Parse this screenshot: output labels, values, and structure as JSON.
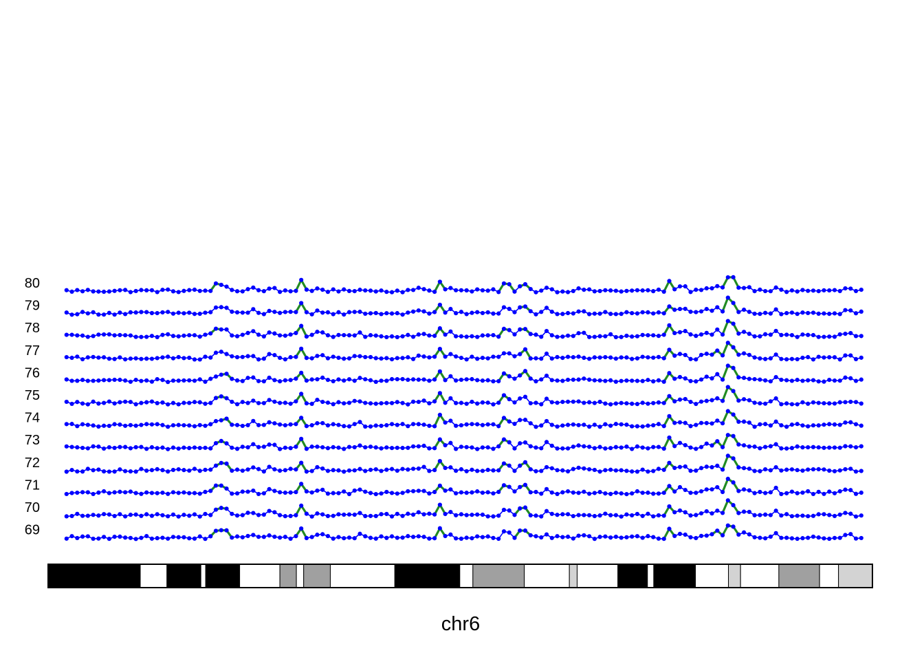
{
  "chart_data": {
    "type": "line",
    "chromosome_label": "chr6",
    "row_labels": [
      "80",
      "79",
      "78",
      "77",
      "76",
      "75",
      "74",
      "73",
      "72",
      "71",
      "70",
      "69"
    ],
    "colors": {
      "point": "#0000ff",
      "low_line": "#0000ff",
      "high_line": "#228b22",
      "band_black": "#000000",
      "band_dark_gray": "#a0a0a0",
      "band_light_gray": "#d3d3d3",
      "band_white": "#ffffff",
      "outline": "#000000",
      "label": "#000000"
    },
    "x_range": [
      0,
      170
    ],
    "ideogram_bands": [
      {
        "start": 0,
        "end": 19,
        "stain": "black"
      },
      {
        "start": 19,
        "end": 24.5,
        "stain": "white"
      },
      {
        "start": 24.5,
        "end": 31.5,
        "stain": "black"
      },
      {
        "start": 31.5,
        "end": 32.5,
        "stain": "white"
      },
      {
        "start": 32.5,
        "end": 39.5,
        "stain": "black"
      },
      {
        "start": 39.5,
        "end": 47.8,
        "stain": "white"
      },
      {
        "start": 47.8,
        "end": 51.2,
        "stain": "darkgray"
      },
      {
        "start": 51.2,
        "end": 52.7,
        "stain": "white"
      },
      {
        "start": 52.7,
        "end": 58.2,
        "stain": "darkgray"
      },
      {
        "start": 58.2,
        "end": 71.5,
        "stain": "white"
      },
      {
        "start": 71.5,
        "end": 84.9,
        "stain": "black"
      },
      {
        "start": 84.9,
        "end": 87.6,
        "stain": "white"
      },
      {
        "start": 87.6,
        "end": 98.2,
        "stain": "darkgray"
      },
      {
        "start": 98.2,
        "end": 107.5,
        "stain": "white"
      },
      {
        "start": 107.5,
        "end": 109.1,
        "stain": "lightgray"
      },
      {
        "start": 109.1,
        "end": 117.5,
        "stain": "white"
      },
      {
        "start": 117.5,
        "end": 123.6,
        "stain": "black"
      },
      {
        "start": 123.6,
        "end": 124.9,
        "stain": "white"
      },
      {
        "start": 124.9,
        "end": 133.5,
        "stain": "black"
      },
      {
        "start": 133.5,
        "end": 140.3,
        "stain": "white"
      },
      {
        "start": 140.3,
        "end": 142.8,
        "stain": "lightgray"
      },
      {
        "start": 142.8,
        "end": 150.7,
        "stain": "white"
      },
      {
        "start": 150.7,
        "end": 159.1,
        "stain": "darkgray"
      },
      {
        "start": 159.1,
        "end": 163.0,
        "stain": "white"
      },
      {
        "start": 163.0,
        "end": 170,
        "stain": "lightgray"
      }
    ],
    "series_template": {
      "n_points": 150,
      "x_start": 3.8,
      "x_step": 1.1,
      "baseline": 0.2,
      "threshold": 1.0,
      "noise_amplitude": 0.18,
      "features": [
        [
          35,
          0.75,
          0.75
        ],
        [
          36.5,
          0.7,
          0.6
        ],
        [
          42,
          0.45,
          0.55
        ],
        [
          46,
          0.55,
          0.5
        ],
        [
          52,
          1.1,
          0.45
        ],
        [
          56,
          0.5,
          0.5
        ],
        [
          64,
          0.35,
          0.5
        ],
        [
          77,
          0.3,
          0.8
        ],
        [
          81,
          1.25,
          0.45
        ],
        [
          83,
          0.5,
          0.45
        ],
        [
          94.5,
          1.5,
          0.45
        ],
        [
          98,
          1.0,
          0.75
        ],
        [
          103,
          0.6,
          0.45
        ],
        [
          110,
          0.3,
          0.5
        ],
        [
          128.5,
          2.0,
          0.35
        ],
        [
          130.8,
          1.2,
          0.4
        ],
        [
          135.3,
          0.8,
          0.4
        ],
        [
          137.6,
          1.2,
          0.4
        ],
        [
          140,
          1.9,
          0.45
        ],
        [
          141.5,
          1.5,
          0.5
        ],
        [
          144,
          0.8,
          0.45
        ],
        [
          150,
          0.5,
          0.45
        ],
        [
          165,
          0.5,
          0.45
        ],
        [
          168.6,
          0.85,
          0.35
        ]
      ]
    }
  }
}
